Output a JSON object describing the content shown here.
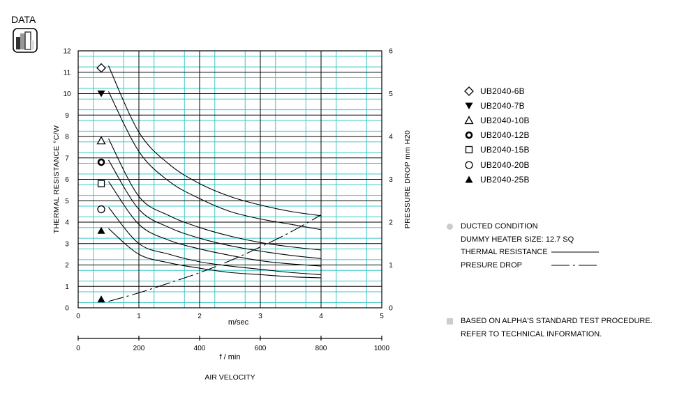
{
  "badge": {
    "label": "DATA"
  },
  "chart_data": {
    "type": "line",
    "xlabel": "m/sec",
    "xlabel2": "f / min",
    "xaxis_title": "AIR VELOCITY",
    "ylabel": "THERMAL RESISTANCE  °C/W",
    "y2label": "PRESSURE  DROP    mm H20",
    "xlim": [
      0,
      5
    ],
    "ylim": [
      0,
      12
    ],
    "y2lim": [
      0,
      6
    ],
    "x_ticks": [
      "0",
      "1",
      "2",
      "3",
      "4",
      "5"
    ],
    "x2_ticks": [
      "0",
      "200",
      "400",
      "600",
      "800",
      "1000"
    ],
    "y_ticks": [
      "0",
      "1",
      "2",
      "3",
      "4",
      "5",
      "6",
      "7",
      "8",
      "9",
      "10",
      "11",
      "12"
    ],
    "y2_ticks": [
      "0",
      "1",
      "2",
      "3",
      "4",
      "5",
      "6"
    ],
    "grid": true,
    "x": [
      0.5,
      1,
      1.5,
      2,
      2.5,
      3,
      3.5,
      4
    ],
    "series": [
      {
        "name": "UB2040-6B",
        "marker": "diamond-open",
        "values": [
          11.3,
          8.2,
          6.7,
          5.8,
          5.2,
          4.8,
          4.5,
          4.3
        ]
      },
      {
        "name": "UB2040-7B",
        "marker": "triangle-down",
        "values": [
          10.1,
          7.3,
          5.9,
          5.1,
          4.5,
          4.15,
          3.9,
          3.65
        ]
      },
      {
        "name": "UB2040-10B",
        "marker": "triangle-open",
        "values": [
          7.9,
          5.2,
          4.3,
          3.75,
          3.35,
          3.05,
          2.85,
          2.7
        ]
      },
      {
        "name": "UB2040-12B",
        "marker": "circle-bold",
        "values": [
          6.9,
          4.6,
          3.75,
          3.25,
          2.9,
          2.65,
          2.45,
          2.3
        ]
      },
      {
        "name": "UB2040-15B",
        "marker": "square-open",
        "values": [
          5.9,
          3.9,
          3.15,
          2.75,
          2.45,
          2.2,
          2.05,
          1.95
        ]
      },
      {
        "name": "UB2040-20B",
        "marker": "circle-open",
        "values": [
          4.7,
          3.0,
          2.5,
          2.15,
          1.95,
          1.8,
          1.65,
          1.55
        ]
      },
      {
        "name": "UB2040-25B",
        "marker": "triangle-up",
        "values": [
          3.7,
          2.5,
          2.1,
          1.85,
          1.65,
          1.55,
          1.45,
          1.4
        ]
      }
    ],
    "pressure_drop": {
      "axis": "y2",
      "x": [
        0.5,
        1,
        1.5,
        2,
        2.5,
        3,
        3.5,
        4
      ],
      "values": [
        0.15,
        0.35,
        0.58,
        0.82,
        1.1,
        1.42,
        1.77,
        2.17
      ]
    }
  },
  "notes": {
    "condition": "DUCTED CONDITION",
    "heater": "DUMMY HEATER SIZE: 12.7 SQ",
    "thermal_resistance": "THERMAL RESISTANCE",
    "pressure_drop": "PRESURE DROP",
    "procedure_1": "BASED ON ALPHA'S STANDARD TEST PROCEDURE.",
    "procedure_2": "REFER TO TECHNICAL INFORMATION."
  }
}
